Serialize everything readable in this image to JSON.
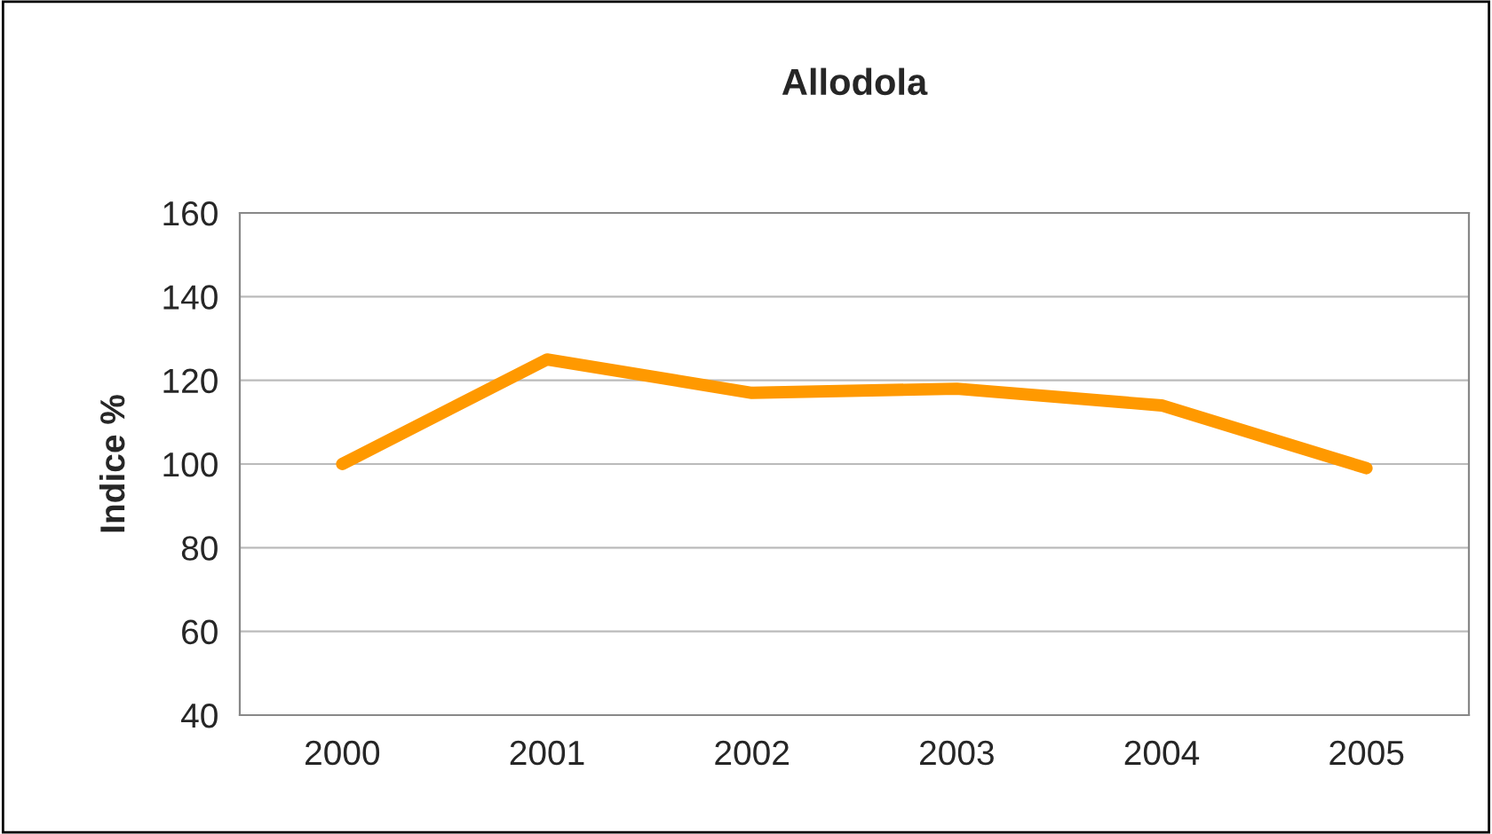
{
  "chart_data": {
    "type": "line",
    "title": "Allodola",
    "ylabel": "Indice %",
    "categories": [
      "2000",
      "2001",
      "2002",
      "2003",
      "2004",
      "2005"
    ],
    "series": [
      {
        "color": "#ff9900",
        "values": [
          100,
          125,
          117,
          118,
          114,
          99
        ]
      }
    ],
    "ylim": [
      40,
      160
    ],
    "yticks": [
      40,
      60,
      80,
      100,
      120,
      140,
      160
    ],
    "grid": "y",
    "legend": false,
    "marker": "none",
    "line_style": "solid"
  }
}
